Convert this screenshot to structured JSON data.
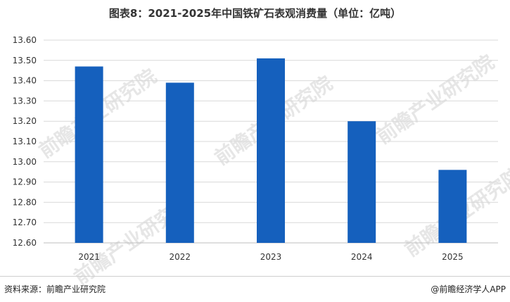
{
  "title": "图表8：2021-2025年中国铁矿石表观消费量（单位：亿吨）",
  "footer": {
    "source": "资料来源：前瞻产业研究院",
    "brand": "@前瞻经济学人APP"
  },
  "watermark": "前瞻产业研究院",
  "colors": {
    "bar": "#1560bd",
    "grid": "#d9d9d9",
    "axis": "#bfbfbf"
  },
  "chart_data": {
    "type": "bar",
    "categories": [
      "2021",
      "2022",
      "2023",
      "2024",
      "2025"
    ],
    "values": [
      13.47,
      13.39,
      13.51,
      13.2,
      12.96
    ],
    "ylim": [
      12.6,
      13.6
    ],
    "yticks": [
      "13.60",
      "13.50",
      "13.40",
      "13.30",
      "13.20",
      "13.10",
      "13.00",
      "12.90",
      "12.80",
      "12.70",
      "12.60"
    ],
    "grid": true,
    "legend": "none"
  }
}
